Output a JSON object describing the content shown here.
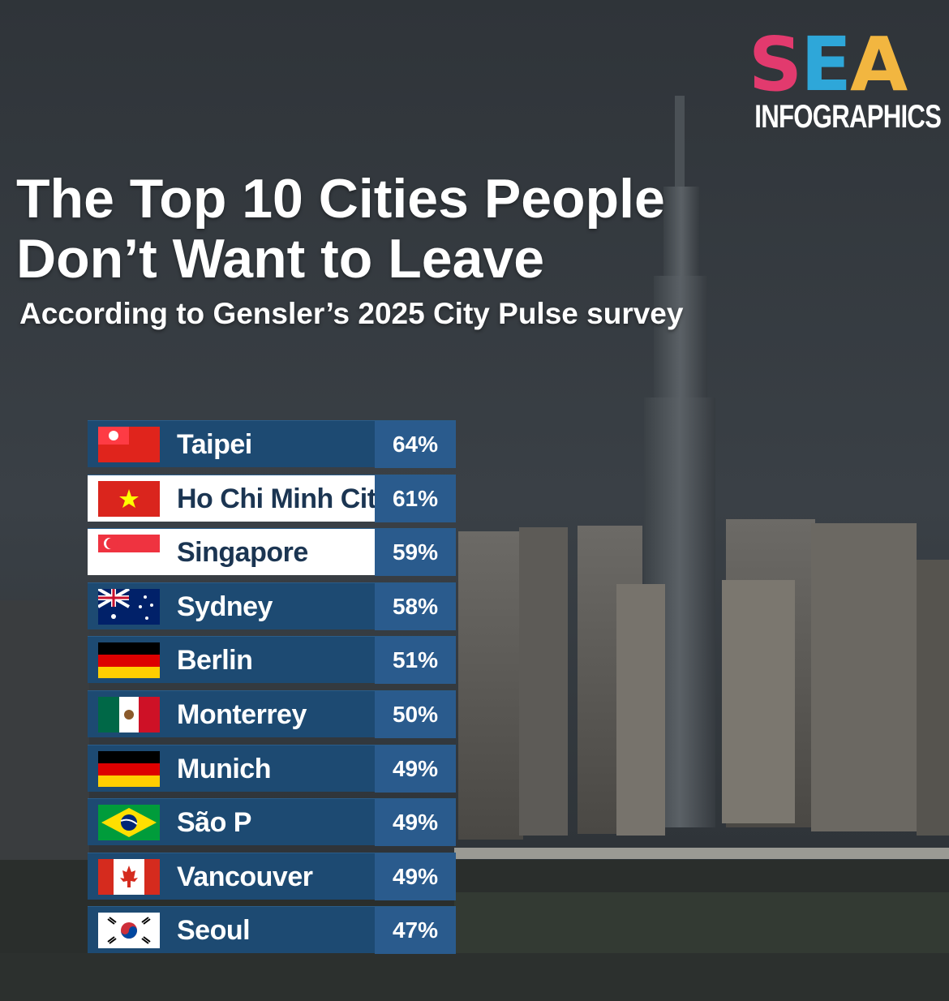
{
  "logo": {
    "letters": [
      "S",
      "E",
      "A"
    ],
    "subtitle": "INFOGRAPHICS",
    "colors": [
      "#e23a6e",
      "#2ea7d9",
      "#f2b640",
      "#7bc043"
    ]
  },
  "header": {
    "title_line1": "The Top 10 Cities People",
    "title_line2": "Don’t Want to Leave",
    "subtitle": "According to Gensler’s 2025 City Pulse survey"
  },
  "colors": {
    "row_blue": "#1d4a72",
    "pct_blue": "#2a5b8d",
    "row_highlight": "#ffffff"
  },
  "chart_data": {
    "type": "table",
    "categories": [
      "Taipei",
      "Ho Chi Minh City",
      "Singapore",
      "Sydney",
      "Berlin",
      "Monterrey",
      "Munich",
      "São P",
      "Vancouver",
      "Seoul"
    ],
    "values": [
      64,
      61,
      59,
      58,
      51,
      50,
      49,
      49,
      49,
      47
    ],
    "value_labels": [
      "64%",
      "61%",
      "59%",
      "58%",
      "51%",
      "50%",
      "49%",
      "49%",
      "49%",
      "47%"
    ],
    "flags": [
      "taiwan-flag-icon",
      "vietnam-flag-icon",
      "singapore-flag-icon",
      "australia-flag-icon",
      "germany-flag-icon",
      "mexico-flag-icon",
      "germany-flag-icon",
      "brazil-flag-icon",
      "canada-flag-icon",
      "south-korea-flag-icon"
    ],
    "highlighted_rows": [
      "Ho Chi Minh City",
      "Singapore"
    ]
  }
}
